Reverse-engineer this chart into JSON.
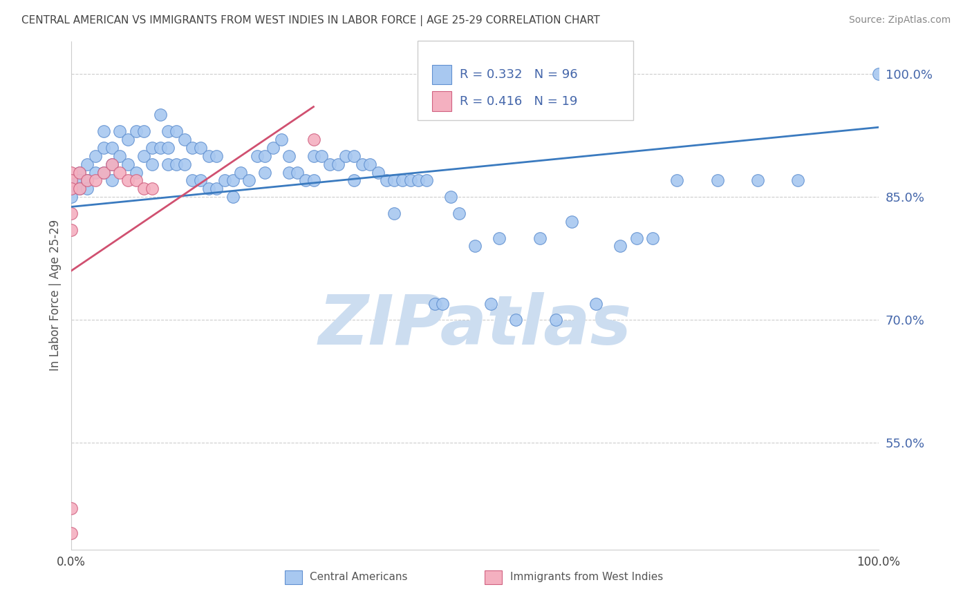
{
  "title": "CENTRAL AMERICAN VS IMMIGRANTS FROM WEST INDIES IN LABOR FORCE | AGE 25-29 CORRELATION CHART",
  "source": "Source: ZipAtlas.com",
  "ylabel": "In Labor Force | Age 25-29",
  "xlim": [
    0.0,
    1.0
  ],
  "ylim": [
    0.42,
    1.04
  ],
  "y_ticks": [
    0.55,
    0.7,
    0.85,
    1.0
  ],
  "y_tick_labels": [
    "55.0%",
    "70.0%",
    "85.0%",
    "100.0%"
  ],
  "blue_R": 0.332,
  "blue_N": 96,
  "pink_R": 0.416,
  "pink_N": 19,
  "blue_color": "#a8c8f0",
  "pink_color": "#f4b0c0",
  "blue_edge_color": "#6090d0",
  "pink_edge_color": "#d06080",
  "blue_line_color": "#3a7abf",
  "pink_line_color": "#d05070",
  "title_color": "#444444",
  "axis_label_color": "#4466aa",
  "watermark_color": "#ccddf0",
  "background_color": "#ffffff",
  "blue_line_x0": 0.0,
  "blue_line_x1": 1.0,
  "blue_line_y0": 0.838,
  "blue_line_y1": 0.935,
  "pink_line_x0": 0.0,
  "pink_line_x1": 0.3,
  "pink_line_y0": 0.76,
  "pink_line_y1": 0.96,
  "blue_scatter_x": [
    0.0,
    0.0,
    0.0,
    0.01,
    0.01,
    0.01,
    0.02,
    0.02,
    0.02,
    0.03,
    0.03,
    0.04,
    0.04,
    0.04,
    0.05,
    0.05,
    0.05,
    0.06,
    0.06,
    0.07,
    0.07,
    0.08,
    0.08,
    0.09,
    0.09,
    0.1,
    0.1,
    0.11,
    0.11,
    0.12,
    0.12,
    0.12,
    0.13,
    0.13,
    0.14,
    0.14,
    0.15,
    0.15,
    0.16,
    0.16,
    0.17,
    0.17,
    0.18,
    0.18,
    0.19,
    0.2,
    0.2,
    0.21,
    0.22,
    0.23,
    0.24,
    0.24,
    0.25,
    0.26,
    0.27,
    0.27,
    0.28,
    0.29,
    0.3,
    0.3,
    0.31,
    0.32,
    0.33,
    0.34,
    0.35,
    0.35,
    0.36,
    0.37,
    0.38,
    0.39,
    0.4,
    0.4,
    0.41,
    0.42,
    0.43,
    0.44,
    0.45,
    0.46,
    0.47,
    0.48,
    0.5,
    0.52,
    0.53,
    0.55,
    0.58,
    0.6,
    0.62,
    0.65,
    0.68,
    0.7,
    0.72,
    0.75,
    0.8,
    0.85,
    0.9,
    1.0
  ],
  "blue_scatter_y": [
    0.87,
    0.86,
    0.85,
    0.88,
    0.87,
    0.86,
    0.89,
    0.87,
    0.86,
    0.9,
    0.88,
    0.93,
    0.91,
    0.88,
    0.91,
    0.89,
    0.87,
    0.93,
    0.9,
    0.92,
    0.89,
    0.93,
    0.88,
    0.93,
    0.9,
    0.91,
    0.89,
    0.95,
    0.91,
    0.93,
    0.91,
    0.89,
    0.93,
    0.89,
    0.92,
    0.89,
    0.91,
    0.87,
    0.91,
    0.87,
    0.9,
    0.86,
    0.9,
    0.86,
    0.87,
    0.87,
    0.85,
    0.88,
    0.87,
    0.9,
    0.9,
    0.88,
    0.91,
    0.92,
    0.9,
    0.88,
    0.88,
    0.87,
    0.9,
    0.87,
    0.9,
    0.89,
    0.89,
    0.9,
    0.9,
    0.87,
    0.89,
    0.89,
    0.88,
    0.87,
    0.87,
    0.83,
    0.87,
    0.87,
    0.87,
    0.87,
    0.72,
    0.72,
    0.85,
    0.83,
    0.79,
    0.72,
    0.8,
    0.7,
    0.8,
    0.7,
    0.82,
    0.72,
    0.79,
    0.8,
    0.8,
    0.87,
    0.87,
    0.87,
    0.87,
    1.0
  ],
  "pink_scatter_x": [
    0.0,
    0.0,
    0.0,
    0.0,
    0.0,
    0.0,
    0.0,
    0.01,
    0.01,
    0.02,
    0.03,
    0.04,
    0.05,
    0.06,
    0.07,
    0.08,
    0.09,
    0.1,
    0.3
  ],
  "pink_scatter_y": [
    0.88,
    0.87,
    0.86,
    0.83,
    0.81,
    0.47,
    0.44,
    0.88,
    0.86,
    0.87,
    0.87,
    0.88,
    0.89,
    0.88,
    0.87,
    0.87,
    0.86,
    0.86,
    0.92
  ]
}
